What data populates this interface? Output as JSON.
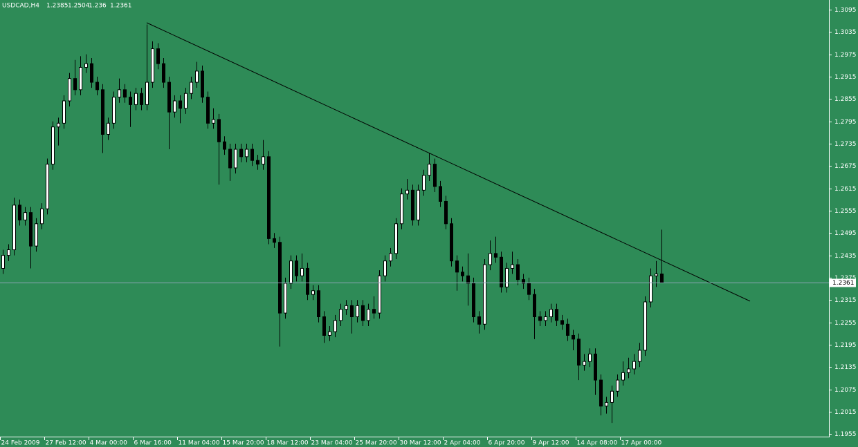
{
  "chart_data": {
    "type": "candlestick",
    "title": "USDCAD,H4",
    "categories": [
      "24 Feb 2009",
      null,
      null,
      null,
      null,
      null,
      null,
      null,
      "27 Feb 12:00",
      null,
      null,
      null,
      null,
      null,
      null,
      null,
      "4 Mar 00:00",
      null,
      null,
      null,
      null,
      null,
      null,
      null,
      "6 Mar 16:00",
      null,
      null,
      null,
      null,
      null,
      null,
      null,
      "11 Mar 04:00",
      null,
      null,
      null,
      null,
      null,
      null,
      null,
      "15 Mar 20:00",
      null,
      null,
      null,
      null,
      null,
      null,
      null,
      "18 Mar 12:00",
      null,
      null,
      null,
      null,
      null,
      null,
      null,
      "23 Mar 04:00",
      null,
      null,
      null,
      null,
      null,
      null,
      null,
      "25 Mar 20:00",
      null,
      null,
      null,
      null,
      null,
      null,
      null,
      "30 Mar 12:00",
      null,
      null,
      null,
      null,
      null,
      null,
      null,
      "2 Apr 04:00",
      null,
      null,
      null,
      null,
      null,
      null,
      null,
      "6 Apr 20:00",
      null,
      null,
      null,
      null,
      null,
      null,
      null,
      "9 Apr 12:00",
      null,
      null,
      null,
      null,
      null,
      null,
      null,
      "14 Apr 08:00",
      null,
      null,
      null,
      null,
      null,
      null,
      null,
      "17 Apr 00:00",
      null,
      null,
      null,
      null,
      null,
      null,
      null
    ],
    "open": [
      1.24,
      1.2435,
      1.245,
      1.257,
      1.253,
      1.255,
      1.246,
      1.252,
      1.256,
      1.268,
      1.278,
      1.279,
      1.285,
      1.291,
      1.288,
      1.294,
      1.295,
      1.29,
      1.288,
      1.276,
      1.279,
      1.286,
      1.288,
      1.286,
      1.284,
      1.287,
      1.284,
      1.29,
      1.299,
      1.295,
      1.29,
      1.282,
      1.285,
      1.283,
      1.287,
      1.29,
      1.293,
      1.286,
      1.279,
      1.28,
      1.274,
      1.272,
      1.267,
      1.272,
      1.27,
      1.272,
      1.269,
      1.268,
      1.27,
      1.248,
      1.247,
      1.228,
      1.236,
      1.242,
      1.238,
      1.24,
      1.233,
      1.234,
      1.227,
      1.222,
      1.223,
      1.226,
      1.229,
      1.23,
      1.227,
      1.23,
      1.226,
      1.229,
      1.228,
      1.238,
      1.242,
      1.244,
      1.252,
      1.26,
      1.261,
      1.253,
      1.261,
      1.265,
      1.268,
      1.262,
      1.258,
      1.252,
      1.242,
      1.239,
      1.238,
      1.236,
      1.227,
      1.225,
      1.241,
      1.244,
      1.243,
      1.235,
      1.24,
      1.241,
      1.237,
      1.236,
      1.233,
      1.227,
      1.226,
      1.227,
      1.229,
      1.226,
      1.225,
      1.222,
      1.221,
      1.214,
      1.215,
      1.217,
      1.21,
      1.203,
      1.204,
      1.207,
      1.21,
      1.212,
      1.213,
      1.215,
      1.218,
      1.231,
      1.238,
      1.2385
    ],
    "high": [
      1.245,
      1.2465,
      1.259,
      1.2585,
      1.2565,
      1.2565,
      1.2535,
      1.2575,
      1.2695,
      1.2795,
      1.2805,
      1.2865,
      1.2925,
      1.296,
      1.297,
      1.2975,
      1.2965,
      1.2915,
      1.2895,
      1.2805,
      1.2875,
      1.291,
      1.2895,
      1.2875,
      1.2885,
      1.2885,
      1.3055,
      1.301,
      1.3005,
      1.2965,
      1.2915,
      1.2865,
      1.2865,
      1.2885,
      1.2915,
      1.2955,
      1.2945,
      1.2875,
      1.283,
      1.2815,
      1.2755,
      1.2735,
      1.2735,
      1.2735,
      1.2735,
      1.2735,
      1.2705,
      1.2745,
      1.2715,
      1.2495,
      1.2485,
      1.2375,
      1.2435,
      1.2435,
      1.244,
      1.2415,
      1.2355,
      1.2355,
      1.2285,
      1.2245,
      1.2275,
      1.2305,
      1.2315,
      1.2315,
      1.2315,
      1.2315,
      1.2305,
      1.2325,
      1.2395,
      1.2435,
      1.2455,
      1.2535,
      1.2615,
      1.264,
      1.2625,
      1.2625,
      1.2665,
      1.271,
      1.2695,
      1.2635,
      1.2595,
      1.2535,
      1.2435,
      1.2405,
      1.244,
      1.2375,
      1.2285,
      1.2425,
      1.2475,
      1.2485,
      1.2445,
      1.2415,
      1.2445,
      1.2425,
      1.2385,
      1.2375,
      1.2345,
      1.2285,
      1.2285,
      1.2305,
      1.2305,
      1.2275,
      1.2265,
      1.2235,
      1.2225,
      1.217,
      1.2185,
      1.2185,
      1.2115,
      1.2055,
      1.2085,
      1.2115,
      1.215,
      1.216,
      1.217,
      1.22,
      1.2325,
      1.24,
      1.242,
      1.2504
    ],
    "low": [
      1.2385,
      1.242,
      1.2435,
      1.2515,
      1.2515,
      1.24,
      1.2445,
      1.2505,
      1.2545,
      1.2665,
      1.273,
      1.2775,
      1.2835,
      1.2865,
      1.2865,
      1.2925,
      1.2885,
      1.2865,
      1.271,
      1.2745,
      1.2775,
      1.2845,
      1.2845,
      1.278,
      1.2825,
      1.2825,
      1.2825,
      1.2885,
      1.2935,
      1.2885,
      1.272,
      1.2805,
      1.279,
      1.2815,
      1.2855,
      1.2885,
      1.2845,
      1.2775,
      1.2775,
      1.2625,
      1.2705,
      1.2635,
      1.2655,
      1.2685,
      1.2685,
      1.2675,
      1.2665,
      1.2665,
      1.2465,
      1.2455,
      1.219,
      1.2265,
      1.2345,
      1.2365,
      1.2365,
      1.2315,
      1.2315,
      1.2255,
      1.22,
      1.2205,
      1.2215,
      1.2245,
      1.2275,
      1.2225,
      1.2255,
      1.2245,
      1.2245,
      1.2265,
      1.2265,
      1.2365,
      1.2405,
      1.2425,
      1.2505,
      1.2585,
      1.2515,
      1.2515,
      1.2595,
      1.2635,
      1.2605,
      1.2565,
      1.2505,
      1.2405,
      1.234,
      1.2365,
      1.23,
      1.2255,
      1.2225,
      1.2235,
      1.2395,
      1.2415,
      1.2335,
      1.2335,
      1.2385,
      1.2355,
      1.2345,
      1.2315,
      1.221,
      1.2245,
      1.2245,
      1.2255,
      1.2245,
      1.2235,
      1.2205,
      1.218,
      1.21,
      1.2125,
      1.2135,
      1.206,
      1.2005,
      1.201,
      1.1985,
      1.2055,
      1.2085,
      1.2105,
      1.2115,
      1.2135,
      1.2165,
      1.2295,
      1.235,
      1.236
    ],
    "close": [
      1.2435,
      1.245,
      1.257,
      1.253,
      1.255,
      1.246,
      1.252,
      1.256,
      1.268,
      1.278,
      1.279,
      1.285,
      1.291,
      1.288,
      1.294,
      1.295,
      1.29,
      1.288,
      1.276,
      1.279,
      1.286,
      1.288,
      1.286,
      1.284,
      1.287,
      1.284,
      1.29,
      1.299,
      1.295,
      1.29,
      1.282,
      1.285,
      1.283,
      1.287,
      1.29,
      1.293,
      1.286,
      1.279,
      1.28,
      1.274,
      1.272,
      1.267,
      1.272,
      1.27,
      1.272,
      1.269,
      1.268,
      1.27,
      1.248,
      1.247,
      1.228,
      1.236,
      1.242,
      1.238,
      1.24,
      1.233,
      1.234,
      1.227,
      1.222,
      1.223,
      1.226,
      1.229,
      1.23,
      1.227,
      1.23,
      1.226,
      1.229,
      1.228,
      1.238,
      1.242,
      1.244,
      1.252,
      1.26,
      1.261,
      1.253,
      1.261,
      1.265,
      1.268,
      1.262,
      1.258,
      1.252,
      1.242,
      1.239,
      1.238,
      1.236,
      1.227,
      1.225,
      1.241,
      1.244,
      1.243,
      1.235,
      1.24,
      1.241,
      1.237,
      1.236,
      1.233,
      1.227,
      1.226,
      1.227,
      1.229,
      1.226,
      1.225,
      1.222,
      1.221,
      1.214,
      1.215,
      1.217,
      1.21,
      1.203,
      1.204,
      1.207,
      1.21,
      1.212,
      1.213,
      1.215,
      1.218,
      1.231,
      1.238,
      1.2385,
      1.2361
    ],
    "trendline": {
      "x": [
        26,
        135
      ],
      "y": [
        1.306,
        1.2312
      ]
    },
    "xlim": [
      -0.5,
      149.25
    ],
    "ylim": [
      1.1948,
      1.3121
    ],
    "yticks": [
      1.3095,
      1.3035,
      1.2975,
      1.2915,
      1.2855,
      1.2795,
      1.2735,
      1.2675,
      1.2615,
      1.2555,
      1.2495,
      1.2435,
      1.2375,
      1.2315,
      1.2255,
      1.2195,
      1.2135,
      1.2075,
      1.2015,
      1.1955
    ],
    "grid": false,
    "background": "#2e8b57",
    "bull_color": "#ffffff",
    "bear_color": "#000000",
    "wick_color": "#000000"
  }
}
